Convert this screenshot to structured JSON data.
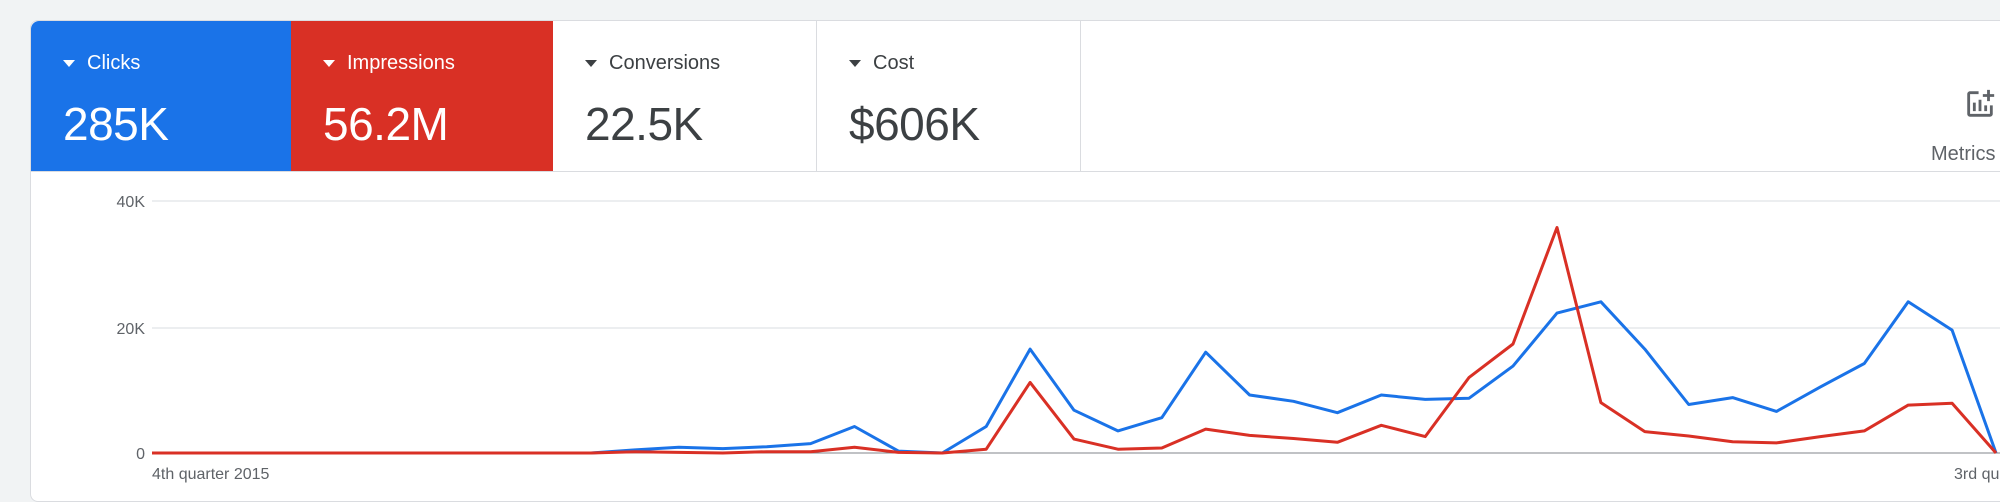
{
  "scorecards": [
    {
      "label": "Clicks",
      "value": "285K",
      "color": "#1a73e8"
    },
    {
      "label": "Impressions",
      "value": "56.2M",
      "color": "#d93025"
    },
    {
      "label": "Conversions",
      "value": "22.5K"
    },
    {
      "label": "Cost",
      "value": "$606K"
    }
  ],
  "metrics_button": {
    "label": "Metrics",
    "icon": "add-chart-icon"
  },
  "chart_data": {
    "type": "line",
    "grid": true,
    "y_ticks": [
      "40K",
      "20K",
      "0"
    ],
    "ylim": [
      0,
      40000
    ],
    "x_tick_labels": [
      "4th quarter 2015",
      "3rd qu"
    ],
    "series": [
      {
        "color": "#1a73e8",
        "values": [
          0,
          0,
          0,
          0,
          0,
          0,
          0,
          0,
          0,
          0,
          0,
          500,
          900,
          700,
          1000,
          1500,
          4200,
          300,
          0,
          4200,
          16500,
          6800,
          3500,
          5600,
          16000,
          9200,
          8200,
          6400,
          9200,
          8500,
          8700,
          13800,
          22200,
          24000,
          16500,
          7700,
          8800,
          6600,
          10500,
          14200,
          24000,
          19500,
          0
        ]
      },
      {
        "color": "#d93025",
        "values": [
          0,
          0,
          0,
          0,
          0,
          0,
          0,
          0,
          0,
          0,
          0,
          200,
          100,
          0,
          200,
          200,
          900,
          100,
          0,
          600,
          11200,
          2200,
          600,
          800,
          3800,
          2800,
          2300,
          1700,
          4400,
          2600,
          12000,
          17300,
          35800,
          8000,
          3400,
          2700,
          1800,
          1600,
          2600,
          3500,
          7600,
          7900,
          0
        ]
      }
    ]
  }
}
